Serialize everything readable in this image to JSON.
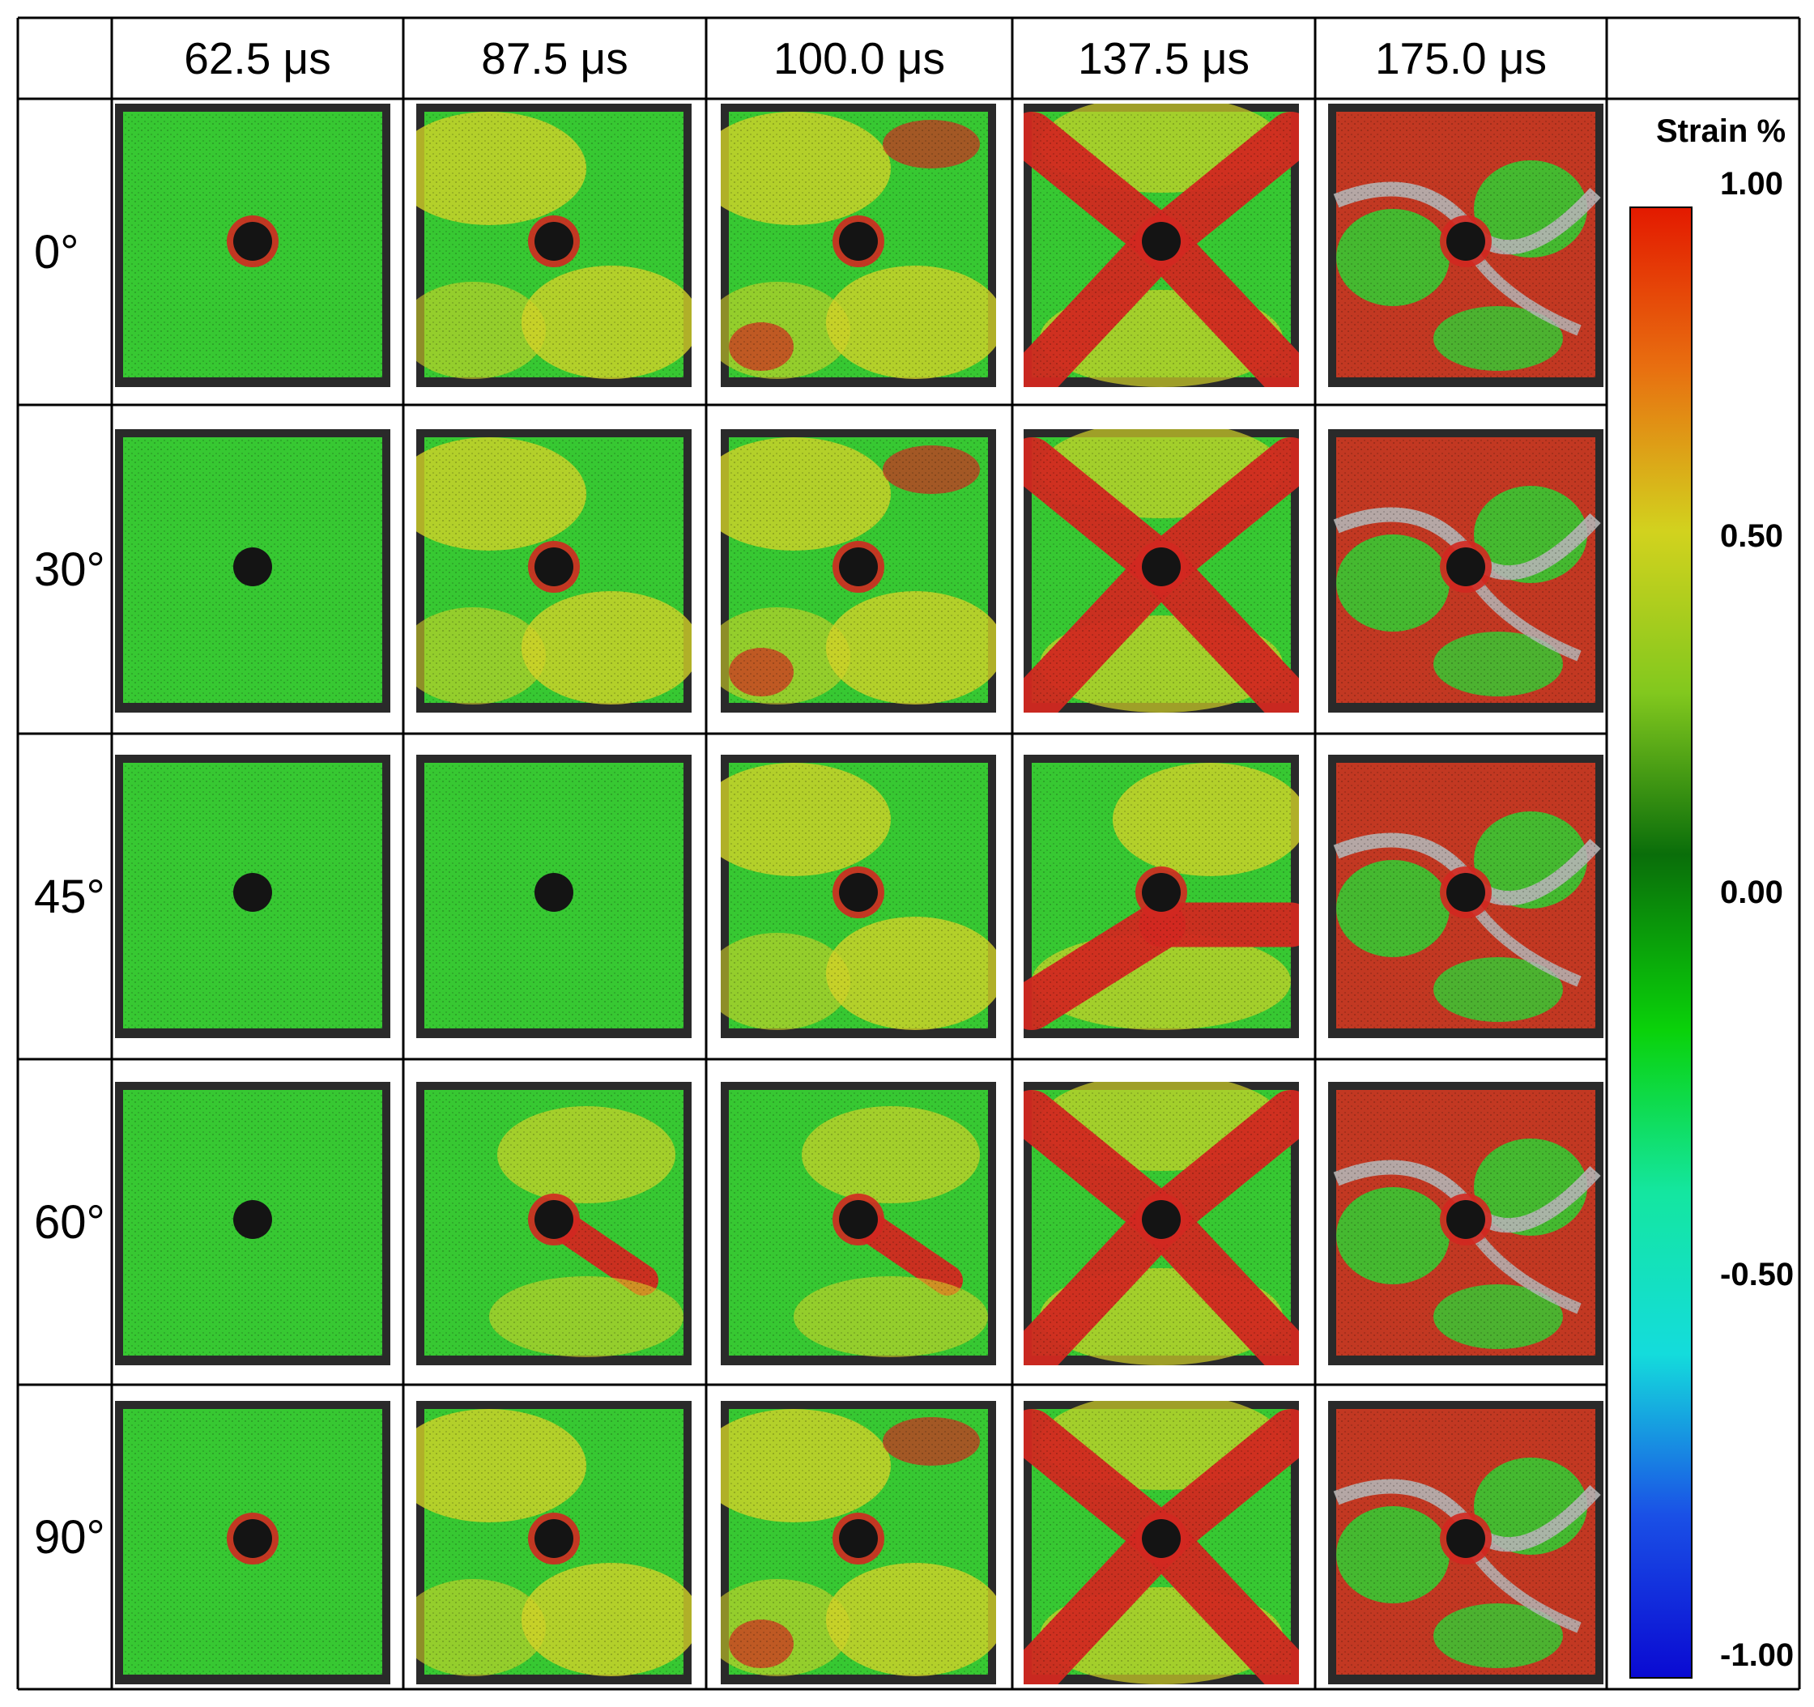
{
  "figure": {
    "column_headers": [
      "62.5 μs",
      "87.5 μs",
      "100.0 μs",
      "137.5 μs",
      "175.0 μs"
    ],
    "row_labels": [
      "0°",
      "30°",
      "45°",
      "60°",
      "90°"
    ],
    "colorbar": {
      "title": "Strain %",
      "ticks": [
        "1.00",
        "0.50",
        "0.00",
        "-0.50",
        "-1.00"
      ],
      "range": [
        -1.0,
        1.0
      ],
      "colors": [
        "#e31a00",
        "#e87010",
        "#d2d21e",
        "#82c81e",
        "#0a6e0a",
        "#0ad20a",
        "#14e6a0",
        "#14dcdc",
        "#1a50e6",
        "#0a0ad2"
      ]
    },
    "panel_colors": {
      "green": "#37c832",
      "yellow": "#d2d228",
      "red": "#d22820",
      "crack": "#b4b4b4",
      "hole": "#141414"
    },
    "panels": [
      {
        "row": 0,
        "col": 0,
        "strain": "low"
      },
      {
        "row": 0,
        "col": 1,
        "strain": "low-mid"
      },
      {
        "row": 0,
        "col": 2,
        "strain": "mid"
      },
      {
        "row": 0,
        "col": 3,
        "strain": "x-band"
      },
      {
        "row": 0,
        "col": 4,
        "strain": "fracture"
      },
      {
        "row": 1,
        "col": 0,
        "strain": "low"
      },
      {
        "row": 1,
        "col": 1,
        "strain": "low-mid"
      },
      {
        "row": 1,
        "col": 2,
        "strain": "mid"
      },
      {
        "row": 1,
        "col": 3,
        "strain": "x-band"
      },
      {
        "row": 1,
        "col": 4,
        "strain": "fracture"
      },
      {
        "row": 2,
        "col": 0,
        "strain": "low"
      },
      {
        "row": 2,
        "col": 1,
        "strain": "low"
      },
      {
        "row": 2,
        "col": 2,
        "strain": "low-mid"
      },
      {
        "row": 2,
        "col": 3,
        "strain": "band-lower"
      },
      {
        "row": 2,
        "col": 4,
        "strain": "fracture"
      },
      {
        "row": 3,
        "col": 0,
        "strain": "low"
      },
      {
        "row": 3,
        "col": 1,
        "strain": "diag"
      },
      {
        "row": 3,
        "col": 2,
        "strain": "diag"
      },
      {
        "row": 3,
        "col": 3,
        "strain": "x-band"
      },
      {
        "row": 3,
        "col": 4,
        "strain": "fracture"
      },
      {
        "row": 4,
        "col": 0,
        "strain": "low"
      },
      {
        "row": 4,
        "col": 1,
        "strain": "low-mid"
      },
      {
        "row": 4,
        "col": 2,
        "strain": "mid"
      },
      {
        "row": 4,
        "col": 3,
        "strain": "x-band"
      },
      {
        "row": 4,
        "col": 4,
        "strain": "fracture"
      }
    ]
  }
}
